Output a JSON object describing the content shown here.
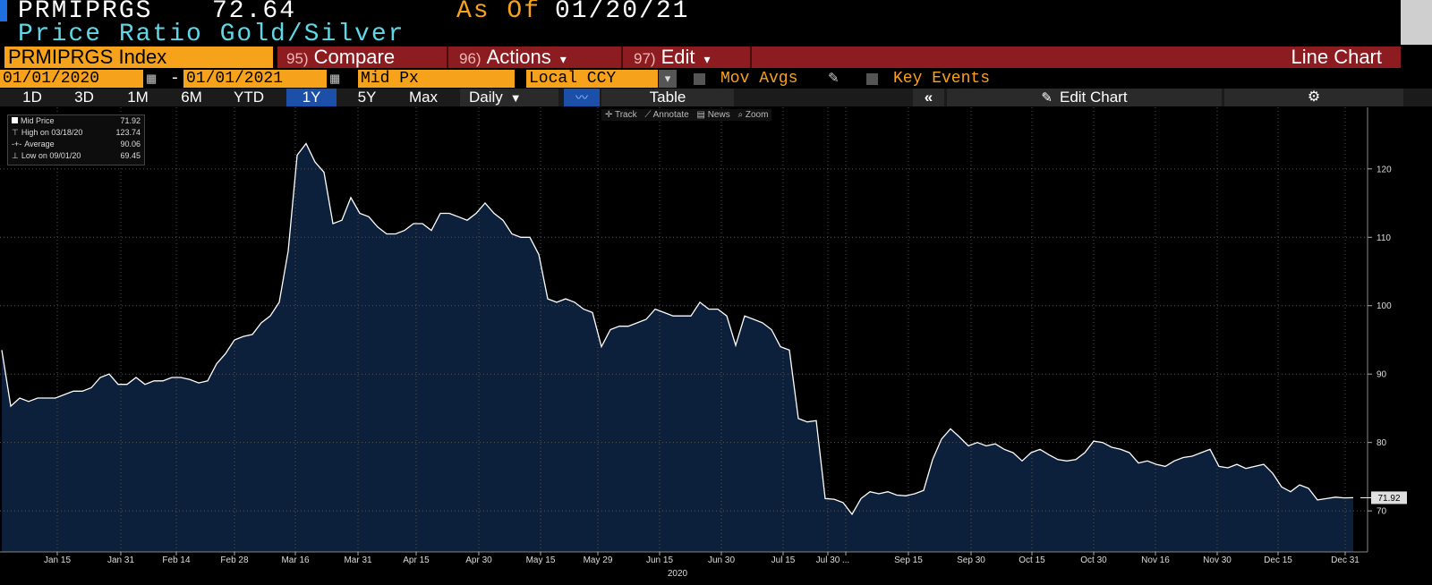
{
  "header": {
    "ticker": "PRMIPRGS",
    "price": 72.64,
    "as_of_label": "As Of",
    "as_of_date": "01/20/21",
    "description": "Price Ratio Gold/Silver"
  },
  "menu": {
    "security": "PRMIPRGS Index",
    "buttons": [
      {
        "number": "95)",
        "label": "Compare"
      },
      {
        "number": "96)",
        "label": "Actions"
      },
      {
        "number": "97)",
        "label": "Edit"
      }
    ],
    "view": "Line Chart"
  },
  "settings": {
    "start_date": "01/01/2020",
    "date_separator": "-",
    "end_date": "01/01/2021",
    "field": "Mid Px",
    "currency": "Local CCY",
    "options": [
      "Mov Avgs",
      "Key Events"
    ]
  },
  "range_bar": {
    "periods": [
      "1D",
      "3D",
      "1M",
      "6M",
      "YTD",
      "1Y",
      "5Y",
      "Max"
    ],
    "active": 5,
    "frequency": "Daily",
    "table": "Table",
    "edit": "Edit Chart"
  },
  "chart_tools": [
    "Track",
    "Annotate",
    "News",
    "Zoom"
  ],
  "chart_data": {
    "type": "line",
    "series": [
      {
        "name": "Mid Price",
        "color": "#ffffff",
        "fill": "#0c1f3b",
        "values": [
          93.5,
          85.3,
          86.5,
          86,
          86.5,
          86.5,
          86.5,
          87,
          87.5,
          87.5,
          88,
          89.5,
          90,
          88.5,
          88.5,
          89.5,
          88.5,
          89,
          89,
          89.5,
          89.5,
          89.2,
          88.7,
          89,
          91.5,
          93,
          95,
          95.5,
          95.8,
          97.5,
          98.5,
          100.5,
          108,
          122,
          123.7,
          121,
          119.5,
          112,
          112.5,
          115.8,
          113.5,
          113,
          111.5,
          110.5,
          110.5,
          111,
          112,
          112,
          111,
          113.5,
          113.5,
          113,
          112.5,
          113.5,
          115,
          113.5,
          112.5,
          110.5,
          110,
          110,
          107.5,
          101,
          100.5,
          101,
          100.5,
          99.5,
          99,
          94,
          96.5,
          97,
          97,
          97.5,
          98,
          99.5,
          99,
          98.5,
          98.5,
          98.5,
          100.5,
          99.5,
          99.5,
          98.5,
          94.2,
          98.5,
          98,
          97.5,
          96.5,
          94,
          93.5,
          83.5,
          83,
          83.2,
          71.8,
          71.7,
          71.2,
          69.5,
          71.8,
          72.8,
          72.5,
          72.8,
          72.3,
          72.2,
          72.5,
          73,
          77.5,
          80.5,
          82,
          80.8,
          79.5,
          80,
          79.5,
          79.8,
          79,
          78.5,
          77.3,
          78.5,
          79,
          78.2,
          77.5,
          77.3,
          77.5,
          78.5,
          80.2,
          80,
          79.3,
          79,
          78.5,
          77,
          77.3,
          76.8,
          76.5,
          77.3,
          77.8,
          78,
          78.5,
          79,
          76.5,
          76.3,
          76.8,
          76.2,
          76.5,
          76.8,
          75.5,
          73.5,
          72.8,
          73.8,
          73.3,
          71.6,
          71.8,
          72,
          71.9,
          71.92
        ]
      }
    ],
    "stats": [
      {
        "label": "High on 03/18/20",
        "value": 123.74
      },
      {
        "label": "Average",
        "value": 90.06
      },
      {
        "label": "Low on 09/01/20",
        "value": 69.45
      }
    ],
    "last_value": 71.92,
    "xlabel": "2020",
    "xlim": [
      0,
      151
    ],
    "xticks": [
      {
        "value": 6.2,
        "label": "Jan 15"
      },
      {
        "value": 13.3,
        "label": "Jan 31"
      },
      {
        "value": 19.5,
        "label": "Feb 14"
      },
      {
        "value": 26,
        "label": "Feb 28"
      },
      {
        "value": 32.8,
        "label": "Mar 16"
      },
      {
        "value": 39.8,
        "label": "Mar 31"
      },
      {
        "value": 46.3,
        "label": "Apr 15"
      },
      {
        "value": 53.3,
        "label": "Apr 30"
      },
      {
        "value": 60.2,
        "label": "May 15"
      },
      {
        "value": 66.6,
        "label": "May 29"
      },
      {
        "value": 73.5,
        "label": "Jun 15"
      },
      {
        "value": 80.4,
        "label": "Jun 30"
      },
      {
        "value": 87.3,
        "label": "Jul 15"
      },
      {
        "value": 92.3,
        "label": "Jul 30"
      },
      {
        "value": 94.3,
        "label": "..."
      },
      {
        "value": 101.3,
        "label": "Sep 15"
      },
      {
        "value": 108.3,
        "label": "Sep 30"
      },
      {
        "value": 115.1,
        "label": "Oct 15"
      },
      {
        "value": 122,
        "label": "Oct 30"
      },
      {
        "value": 128.9,
        "label": "Nov 16"
      },
      {
        "value": 135.8,
        "label": "Nov 30"
      },
      {
        "value": 142.6,
        "label": "Dec 15"
      },
      {
        "value": 150.1,
        "label": "Dec 31"
      }
    ],
    "ylim": [
      64,
      129
    ],
    "yticks": [
      70,
      80,
      90,
      100,
      110,
      120
    ],
    "grid": true
  }
}
